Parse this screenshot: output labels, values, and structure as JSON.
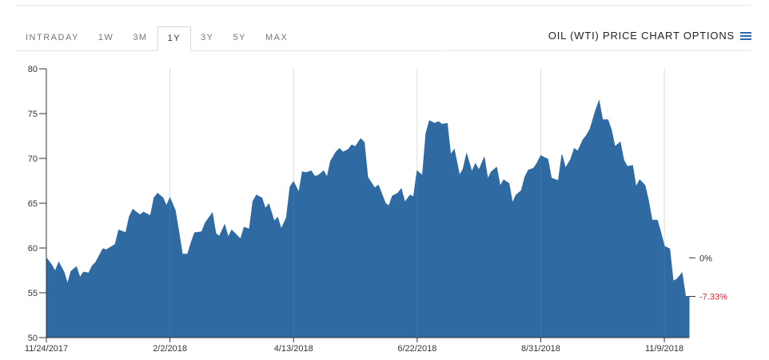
{
  "tabs": [
    {
      "label": "INTRADAY",
      "active": false
    },
    {
      "label": "1W",
      "active": false
    },
    {
      "label": "3M",
      "active": false
    },
    {
      "label": "1Y",
      "active": true
    },
    {
      "label": "3Y",
      "active": false
    },
    {
      "label": "5Y",
      "active": false
    },
    {
      "label": "MAX",
      "active": false
    }
  ],
  "options_label": "OIL (WTI) PRICE CHART OPTIONS",
  "options_icon": "hamburger-menu-icon",
  "colors": {
    "area_fill": "#2f6aa3",
    "accent": "#2a6bb0",
    "negative": "#e8222e"
  },
  "chart_data": {
    "type": "area",
    "title": "",
    "xlabel": "",
    "ylabel": "",
    "ylim": [
      50,
      80
    ],
    "xlim": [
      "2017-11-24",
      "2018-11-23"
    ],
    "grid": "vertical lines at x tick dates",
    "y_ticks": [
      80,
      75,
      70,
      65,
      60,
      55,
      50
    ],
    "x_ticks": [
      {
        "date": "2017-11-24",
        "label": "11/24/2017"
      },
      {
        "date": "2018-02-02",
        "label": "2/2/2018"
      },
      {
        "date": "2018-04-13",
        "label": "4/13/2018"
      },
      {
        "date": "2018-06-22",
        "label": "6/22/2018"
      },
      {
        "date": "2018-08-31",
        "label": "8/31/2018"
      },
      {
        "date": "2018-11-09",
        "label": "11/9/2018"
      }
    ],
    "right_axis": [
      {
        "value": 58.9,
        "label": "0%",
        "color": "#333333"
      },
      {
        "value": 54.6,
        "label": "-7.33%",
        "color": "#e8222e"
      }
    ],
    "series": [
      {
        "points": [
          [
            "2017-11-24",
            58.9
          ],
          [
            "2017-11-27",
            58.1
          ],
          [
            "2017-11-29",
            57.4
          ],
          [
            "2017-12-01",
            58.4
          ],
          [
            "2017-12-04",
            57.3
          ],
          [
            "2017-12-06",
            56.0
          ],
          [
            "2017-12-08",
            57.4
          ],
          [
            "2017-12-11",
            57.9
          ],
          [
            "2017-12-13",
            56.7
          ],
          [
            "2017-12-15",
            57.3
          ],
          [
            "2017-12-18",
            57.2
          ],
          [
            "2017-12-20",
            58.0
          ],
          [
            "2017-12-22",
            58.4
          ],
          [
            "2017-12-26",
            59.9
          ],
          [
            "2017-12-28",
            59.8
          ],
          [
            "2018-01-02",
            60.4
          ],
          [
            "2018-01-04",
            62.0
          ],
          [
            "2018-01-08",
            61.7
          ],
          [
            "2018-01-10",
            63.5
          ],
          [
            "2018-01-12",
            64.3
          ],
          [
            "2018-01-16",
            63.7
          ],
          [
            "2018-01-18",
            64.0
          ],
          [
            "2018-01-22",
            63.6
          ],
          [
            "2018-01-24",
            65.6
          ],
          [
            "2018-01-26",
            66.1
          ],
          [
            "2018-01-29",
            65.6
          ],
          [
            "2018-01-31",
            64.7
          ],
          [
            "2018-02-02",
            65.6
          ],
          [
            "2018-02-05",
            64.2
          ],
          [
            "2018-02-07",
            61.8
          ],
          [
            "2018-02-09",
            59.3
          ],
          [
            "2018-02-12",
            59.3
          ],
          [
            "2018-02-14",
            60.6
          ],
          [
            "2018-02-16",
            61.7
          ],
          [
            "2018-02-20",
            61.8
          ],
          [
            "2018-02-22",
            62.8
          ],
          [
            "2018-02-26",
            63.9
          ],
          [
            "2018-02-28",
            61.6
          ],
          [
            "2018-03-02",
            61.3
          ],
          [
            "2018-03-05",
            62.6
          ],
          [
            "2018-03-07",
            61.2
          ],
          [
            "2018-03-09",
            62.0
          ],
          [
            "2018-03-12",
            61.4
          ],
          [
            "2018-03-14",
            61.0
          ],
          [
            "2018-03-16",
            62.3
          ],
          [
            "2018-03-19",
            62.1
          ],
          [
            "2018-03-21",
            65.2
          ],
          [
            "2018-03-23",
            65.9
          ],
          [
            "2018-03-26",
            65.6
          ],
          [
            "2018-03-28",
            64.4
          ],
          [
            "2018-03-30",
            64.9
          ],
          [
            "2018-04-02",
            63.0
          ],
          [
            "2018-04-04",
            63.4
          ],
          [
            "2018-04-06",
            62.1
          ],
          [
            "2018-04-09",
            63.4
          ],
          [
            "2018-04-11",
            66.8
          ],
          [
            "2018-04-13",
            67.4
          ],
          [
            "2018-04-16",
            66.2
          ],
          [
            "2018-04-18",
            68.5
          ],
          [
            "2018-04-20",
            68.4
          ],
          [
            "2018-04-23",
            68.6
          ],
          [
            "2018-04-25",
            68.0
          ],
          [
            "2018-04-27",
            68.1
          ],
          [
            "2018-04-30",
            68.6
          ],
          [
            "2018-05-02",
            67.9
          ],
          [
            "2018-05-04",
            69.7
          ],
          [
            "2018-05-07",
            70.7
          ],
          [
            "2018-05-09",
            71.1
          ],
          [
            "2018-05-11",
            70.7
          ],
          [
            "2018-05-14",
            71.0
          ],
          [
            "2018-05-16",
            71.5
          ],
          [
            "2018-05-18",
            71.3
          ],
          [
            "2018-05-21",
            72.2
          ],
          [
            "2018-05-23",
            71.8
          ],
          [
            "2018-05-25",
            67.9
          ],
          [
            "2018-05-29",
            66.7
          ],
          [
            "2018-05-31",
            67.0
          ],
          [
            "2018-06-04",
            65.0
          ],
          [
            "2018-06-06",
            64.7
          ],
          [
            "2018-06-08",
            65.8
          ],
          [
            "2018-06-11",
            66.1
          ],
          [
            "2018-06-13",
            66.6
          ],
          [
            "2018-06-15",
            65.1
          ],
          [
            "2018-06-18",
            65.9
          ],
          [
            "2018-06-20",
            65.7
          ],
          [
            "2018-06-22",
            68.6
          ],
          [
            "2018-06-25",
            68.1
          ],
          [
            "2018-06-27",
            72.8
          ],
          [
            "2018-06-29",
            74.2
          ],
          [
            "2018-07-02",
            73.9
          ],
          [
            "2018-07-04",
            74.1
          ],
          [
            "2018-07-06",
            73.8
          ],
          [
            "2018-07-09",
            73.9
          ],
          [
            "2018-07-11",
            70.4
          ],
          [
            "2018-07-13",
            71.0
          ],
          [
            "2018-07-16",
            68.1
          ],
          [
            "2018-07-18",
            68.8
          ],
          [
            "2018-07-20",
            70.5
          ],
          [
            "2018-07-23",
            68.5
          ],
          [
            "2018-07-25",
            69.4
          ],
          [
            "2018-07-27",
            68.7
          ],
          [
            "2018-07-30",
            70.1
          ],
          [
            "2018-08-01",
            67.7
          ],
          [
            "2018-08-03",
            68.5
          ],
          [
            "2018-08-06",
            69.0
          ],
          [
            "2018-08-08",
            66.9
          ],
          [
            "2018-08-10",
            67.6
          ],
          [
            "2018-08-13",
            67.2
          ],
          [
            "2018-08-15",
            65.0
          ],
          [
            "2018-08-17",
            65.9
          ],
          [
            "2018-08-20",
            66.4
          ],
          [
            "2018-08-22",
            67.9
          ],
          [
            "2018-08-24",
            68.7
          ],
          [
            "2018-08-27",
            68.9
          ],
          [
            "2018-08-29",
            69.5
          ],
          [
            "2018-08-31",
            70.3
          ],
          [
            "2018-09-04",
            69.9
          ],
          [
            "2018-09-06",
            67.8
          ],
          [
            "2018-09-10",
            67.5
          ],
          [
            "2018-09-12",
            70.4
          ],
          [
            "2018-09-14",
            68.9
          ],
          [
            "2018-09-17",
            69.9
          ],
          [
            "2018-09-19",
            71.1
          ],
          [
            "2018-09-21",
            70.8
          ],
          [
            "2018-09-24",
            72.1
          ],
          [
            "2018-09-26",
            72.6
          ],
          [
            "2018-09-28",
            73.3
          ],
          [
            "2018-10-01",
            75.3
          ],
          [
            "2018-10-03",
            76.4
          ],
          [
            "2018-10-05",
            74.3
          ],
          [
            "2018-10-08",
            74.3
          ],
          [
            "2018-10-10",
            73.2
          ],
          [
            "2018-10-12",
            71.3
          ],
          [
            "2018-10-15",
            71.8
          ],
          [
            "2018-10-17",
            69.8
          ],
          [
            "2018-10-19",
            69.1
          ],
          [
            "2018-10-22",
            69.2
          ],
          [
            "2018-10-24",
            66.8
          ],
          [
            "2018-10-26",
            67.6
          ],
          [
            "2018-10-29",
            67.0
          ],
          [
            "2018-10-31",
            65.3
          ],
          [
            "2018-11-02",
            63.1
          ],
          [
            "2018-11-05",
            63.1
          ],
          [
            "2018-11-07",
            61.7
          ],
          [
            "2018-11-09",
            60.2
          ],
          [
            "2018-11-12",
            59.9
          ],
          [
            "2018-11-14",
            56.3
          ],
          [
            "2018-11-16",
            56.5
          ],
          [
            "2018-11-19",
            57.2
          ],
          [
            "2018-11-21",
            54.6
          ],
          [
            "2018-11-23",
            54.6
          ]
        ]
      }
    ]
  }
}
